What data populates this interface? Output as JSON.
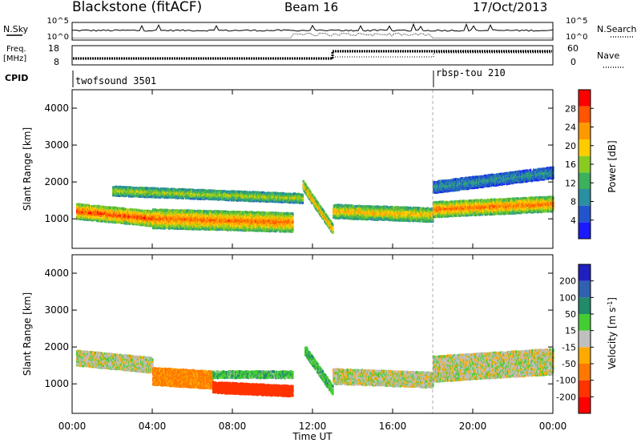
{
  "header": {
    "station": "Blackstone (fitACF)",
    "beam": "Beam 16",
    "date": "17/Oct/2013"
  },
  "nsky_panel": {
    "left_label": "N.Sky",
    "right_label": "N.Search",
    "left_ticks": [
      "10^5",
      "10^0"
    ],
    "right_ticks": [
      "10^5",
      "10^0"
    ]
  },
  "freq_panel": {
    "left_label_1": "Freq.",
    "left_label_2": "[MHz]",
    "right_label": "Nave",
    "left_ticks": [
      "18",
      "8"
    ],
    "right_ticks": [
      "60",
      "0"
    ]
  },
  "cpid": {
    "label": "CPID",
    "segments": [
      {
        "name": "twofsound 3501",
        "start_hour": 0
      },
      {
        "name": "rbsp-tou 210",
        "start_hour": 18
      }
    ]
  },
  "colors": {
    "power_scale": [
      "#1a1aff",
      "#2255cc",
      "#2a8fa0",
      "#3cb05a",
      "#88cc22",
      "#ffcc00",
      "#ff9900",
      "#ff5500",
      "#ff0000"
    ],
    "velocity_scale": [
      "#2020c0",
      "#3060b0",
      "#208a6a",
      "#44cc33",
      "#bfbfbf",
      "#ffaa00",
      "#ff7700",
      "#ff3300",
      "#ff0000"
    ]
  },
  "chart_data": [
    {
      "type": "heatmap",
      "panel": "power",
      "ylabel": "Slant Range [km]",
      "xlabel": "",
      "ylim": [
        200,
        4500
      ],
      "yticks": [
        "1000",
        "2000",
        "3000",
        "4000"
      ],
      "xlim_hours": [
        0,
        24
      ],
      "xticks": [
        "00:00",
        "04:00",
        "08:00",
        "12:00",
        "16:00",
        "20:00",
        "00:00"
      ],
      "colorbar": {
        "label": "Power [dB]",
        "ticks": [
          "28",
          "24",
          "20",
          "16",
          "12",
          "8",
          "4"
        ],
        "range": [
          0,
          32
        ]
      },
      "bands": [
        {
          "start_hour": 0.2,
          "end_hour": 4.0,
          "range_start": 1200,
          "range_end": 1000,
          "width_km": 420,
          "level": 28
        },
        {
          "start_hour": 4.0,
          "end_hour": 11.0,
          "range_start": 1000,
          "range_end": 900,
          "width_km": 520,
          "level": 26
        },
        {
          "start_hour": 2.0,
          "end_hour": 11.5,
          "range_start": 1750,
          "range_end": 1550,
          "width_km": 260,
          "level": 18
        },
        {
          "start_hour": 11.5,
          "end_hour": 13.0,
          "range_start": 1900,
          "range_end": 700,
          "width_km": 260,
          "level": 24
        },
        {
          "start_hour": 13.0,
          "end_hour": 18.0,
          "range_start": 1200,
          "range_end": 1100,
          "width_km": 380,
          "level": 22
        },
        {
          "start_hour": 18.0,
          "end_hour": 24.0,
          "range_start": 1250,
          "range_end": 1400,
          "width_km": 420,
          "level": 26
        },
        {
          "start_hour": 18.0,
          "end_hour": 24.0,
          "range_start": 1850,
          "range_end": 2250,
          "width_km": 320,
          "level": 10
        }
      ]
    },
    {
      "type": "heatmap",
      "panel": "velocity",
      "ylabel": "Slant Range [km]",
      "xlabel": "Time UT",
      "ylim": [
        200,
        4500
      ],
      "yticks": [
        "1000",
        "2000",
        "3000",
        "4000"
      ],
      "xlim_hours": [
        0,
        24
      ],
      "xticks": [
        "00:00",
        "04:00",
        "08:00",
        "12:00",
        "16:00",
        "20:00",
        "00:00"
      ],
      "colorbar": {
        "label": "Velocity [m s^-1]",
        "ticks": [
          "200",
          "100",
          "50",
          "15",
          "-15",
          "-50",
          "-100",
          "-200"
        ],
        "range": [
          -250,
          250
        ]
      },
      "bands": [
        {
          "start_hour": 0.2,
          "end_hour": 4.0,
          "range_start": 1700,
          "range_end": 1500,
          "width_km": 420,
          "level": 0
        },
        {
          "start_hour": 4.0,
          "end_hour": 7.0,
          "range_start": 1200,
          "range_end": 1100,
          "width_km": 480,
          "level": -60
        },
        {
          "start_hour": 7.0,
          "end_hour": 11.0,
          "range_start": 900,
          "range_end": 800,
          "width_km": 300,
          "level": -150
        },
        {
          "start_hour": 7.0,
          "end_hour": 11.0,
          "range_start": 1250,
          "range_end": 1250,
          "width_km": 200,
          "level": 40
        },
        {
          "start_hour": 11.6,
          "end_hour": 13.0,
          "range_start": 1900,
          "range_end": 800,
          "width_km": 260,
          "level": 40
        },
        {
          "start_hour": 13.0,
          "end_hour": 18.0,
          "range_start": 1200,
          "range_end": 1100,
          "width_km": 420,
          "level": 0
        },
        {
          "start_hour": 18.0,
          "end_hour": 24.0,
          "range_start": 1400,
          "range_end": 1600,
          "width_km": 700,
          "level": 0
        }
      ]
    }
  ]
}
